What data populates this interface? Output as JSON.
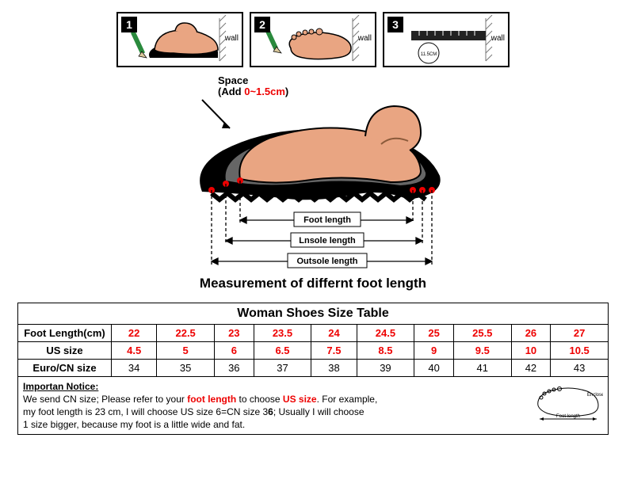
{
  "colors": {
    "skin": "#e9a582",
    "skin_dark": "#c57a56",
    "sole": "#000000",
    "pencil_body": "#2a8a3d",
    "pencil_tip": "#d8c79a",
    "wall_hatch": "#777777",
    "red": "#ee0000",
    "arrow": "#000000"
  },
  "steps": {
    "wall_label": "wall",
    "items": [
      {
        "num": "1"
      },
      {
        "num": "2"
      },
      {
        "num": "3",
        "circle_text": "11.5CM"
      }
    ]
  },
  "diagram": {
    "space_label": "Space",
    "space_add_prefix": "(Add ",
    "space_add_value": "0~1.5cm",
    "space_add_suffix": ")",
    "labels": {
      "foot": "Foot length",
      "insole": "Lnsole length",
      "outsole": "Outsole length"
    },
    "caption": "Measurement of differnt foot length"
  },
  "table": {
    "title": "Woman Shoes Size Table",
    "rows": [
      {
        "label": "Foot Length(cm)",
        "red": true,
        "cells": [
          "22",
          "22.5",
          "23",
          "23.5",
          "24",
          "24.5",
          "25",
          "25.5",
          "26",
          "27"
        ]
      },
      {
        "label": "US size",
        "red": true,
        "cells": [
          "4.5",
          "5",
          "6",
          "6.5",
          "7.5",
          "8.5",
          "9",
          "9.5",
          "10",
          "10.5"
        ]
      },
      {
        "label": "Euro/CN size",
        "red": false,
        "cells": [
          "34",
          "35",
          "36",
          "37",
          "38",
          "39",
          "40",
          "41",
          "42",
          "43"
        ]
      }
    ]
  },
  "notice": {
    "title": "Importan Notice:",
    "pre1": "We send CN size; Please refer to your ",
    "hl1": "foot length",
    "mid1": " to choose ",
    "hl2": "US size",
    "post1": ". For example,",
    "line2a": "my foot length is 23    cm, I will choose US size 6=CN size 3",
    "line2b": "6",
    "line2c": "; Usually I will choose",
    "line3": "1 size bigger, because my foot is a little wide and fat.",
    "foot_enclose": "Enclose",
    "foot_length": "Foot length"
  }
}
